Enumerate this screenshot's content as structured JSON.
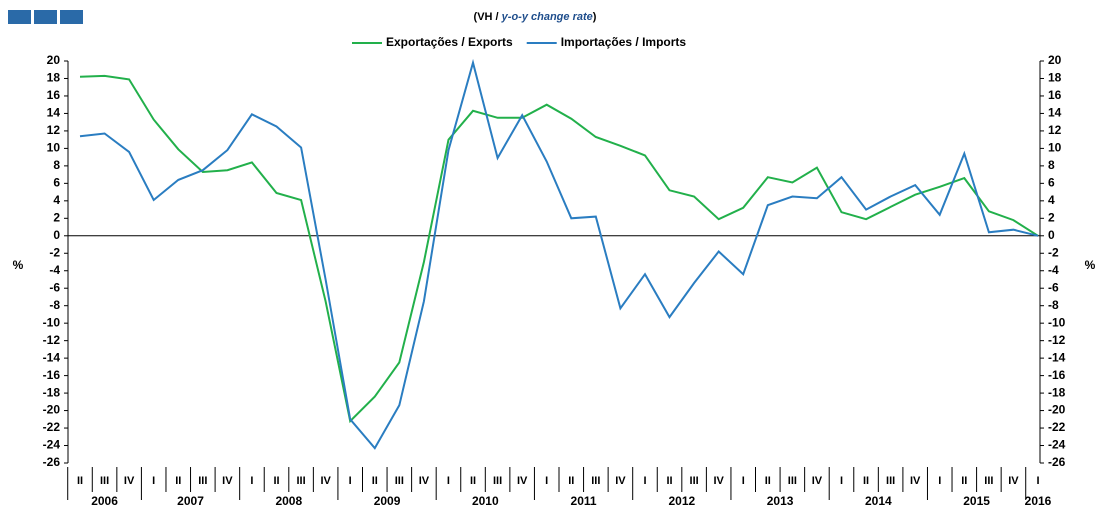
{
  "chart_data": {
    "type": "line",
    "title": [
      "(VH / ",
      "y-o-y change rate",
      ")"
    ],
    "y_label": "%",
    "y2_label": "%",
    "categories": [
      "II",
      "III",
      "IV",
      "I",
      "II",
      "III",
      "IV",
      "I",
      "II",
      "III",
      "IV",
      "I",
      "II",
      "III",
      "IV",
      "I",
      "II",
      "III",
      "IV",
      "I",
      "II",
      "III",
      "IV",
      "I",
      "II",
      "III",
      "IV",
      "I",
      "II",
      "III",
      "IV",
      "I",
      "II",
      "III",
      "IV",
      "I",
      "II",
      "III",
      "IV",
      "I"
    ],
    "years": [
      "2006",
      "2007",
      "2008",
      "2009",
      "2010",
      "2011",
      "2012",
      "2013",
      "2014",
      "2015",
      "2016"
    ],
    "series": [
      {
        "name": "Exportações / Exports",
        "color": "#22b04b",
        "values": [
          18.2,
          18.3,
          17.9,
          13.3,
          9.9,
          7.3,
          7.5,
          8.4,
          4.9,
          4.1,
          -7.5,
          -21.2,
          -18.4,
          -14.5,
          -3,
          11,
          14.3,
          13.5,
          13.5,
          15,
          13.4,
          11.3,
          10.3,
          9.2,
          5.2,
          4.5,
          1.9,
          3.2,
          6.7,
          6.1,
          7.8,
          2.7,
          1.9,
          3.3,
          4.7,
          5.6,
          6.6,
          2.8,
          1.8,
          0
        ]
      },
      {
        "name": "Importações / Imports",
        "color": "#2a7dc1",
        "values": [
          11.4,
          11.7,
          9.6,
          4.1,
          6.4,
          7.5,
          9.8,
          13.9,
          12.5,
          10.1,
          -5,
          -21,
          -24.3,
          -19.4,
          -7.5,
          9.8,
          19.8,
          8.9,
          13.8,
          8.5,
          2,
          2.2,
          -8.3,
          -4.4,
          -9.3,
          -5.4,
          -1.8,
          -4.4,
          3.5,
          4.5,
          4.3,
          6.7,
          3,
          4.5,
          5.8,
          2.4,
          9.4,
          0.4,
          0.7,
          0
        ]
      }
    ],
    "ylim": [
      -26,
      20
    ],
    "yticks": [
      -26,
      -24,
      -22,
      -20,
      -18,
      -16,
      -14,
      -12,
      -10,
      -8,
      -6,
      -4,
      -2,
      0,
      2,
      4,
      6,
      8,
      10,
      12,
      14,
      16,
      18,
      20
    ],
    "legend": "top"
  }
}
